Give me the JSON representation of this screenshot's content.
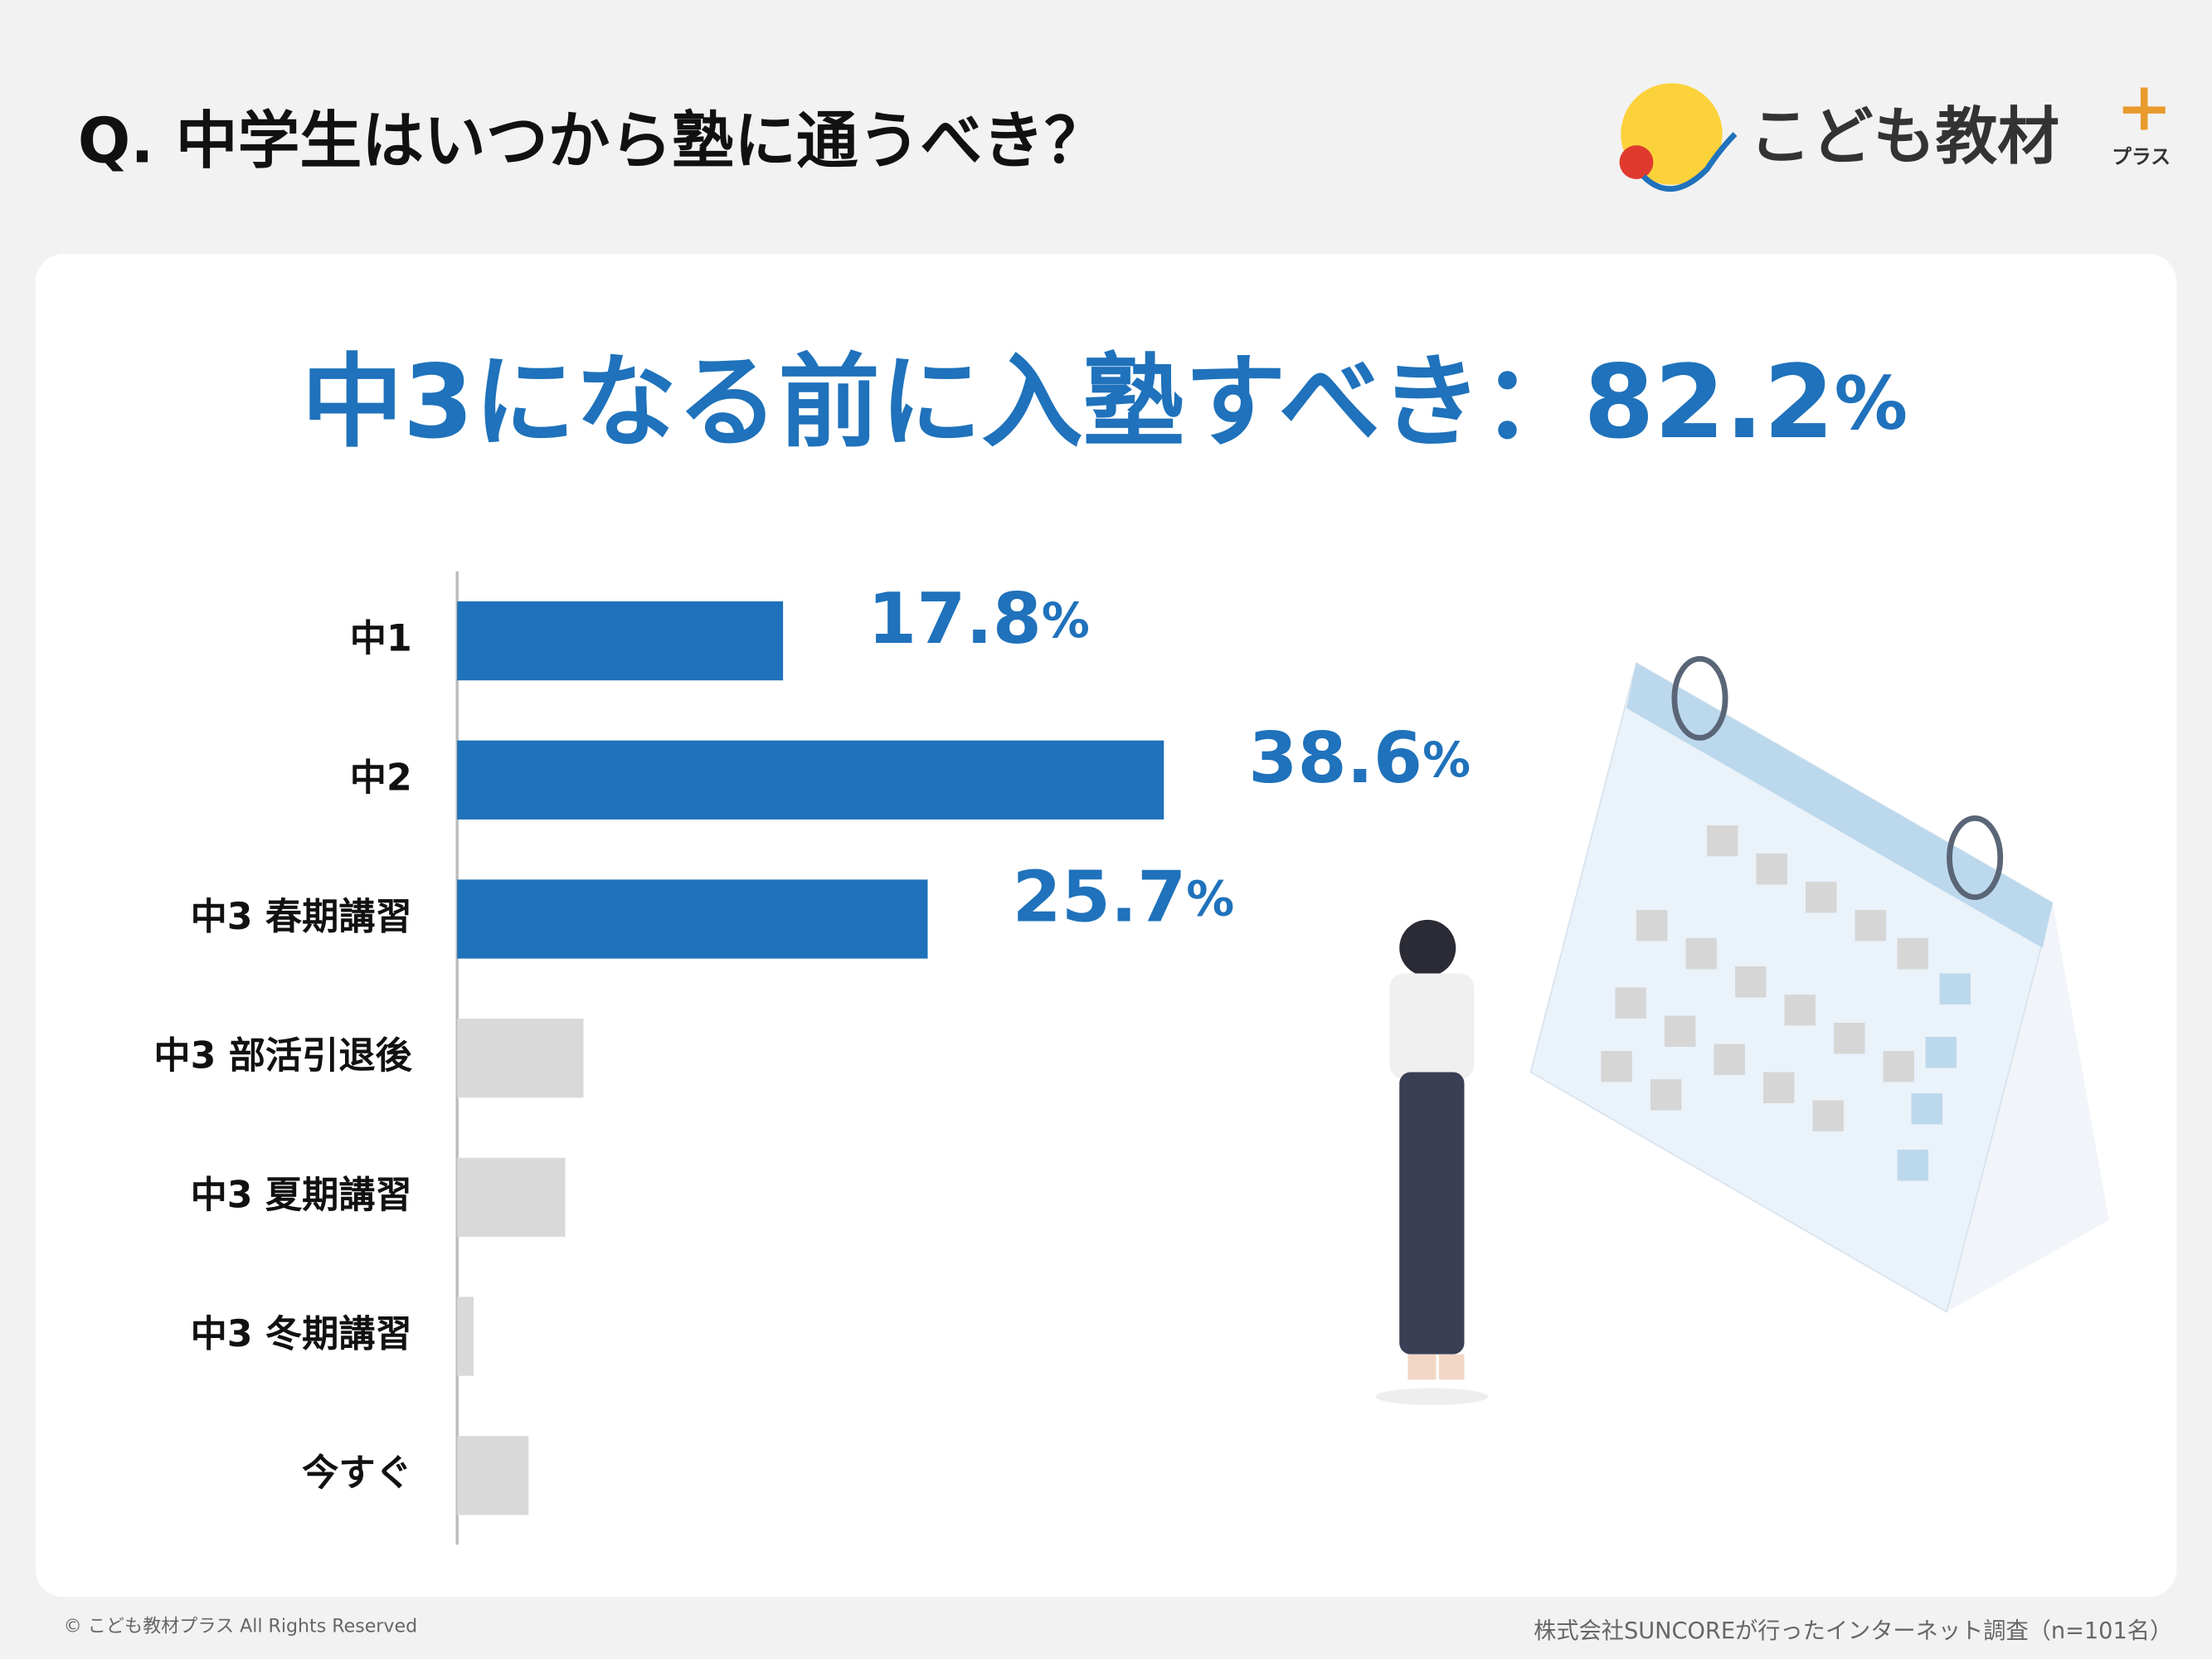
{
  "header": {
    "title": "Q. 中学生はいつから塾に通うべき？",
    "logo": "こども教材",
    "logo_sub": "プラス"
  },
  "chart_data": {
    "type": "hbar",
    "headline": "中3になる前に入塾すべき：82.2%",
    "categories": [
      "中1",
      "中2",
      "中3 春期講習",
      "中3 部活引退後",
      "中3 夏期講習",
      "中3 冬期講習",
      "今すぐ"
    ],
    "values": [
      17.8,
      38.6,
      25.7,
      6.9,
      5.9,
      0.9,
      3.9
    ],
    "value_labels": [
      "17.8%",
      "38.6%",
      "25.7%",
      null,
      null,
      null,
      null
    ],
    "colors": [
      "#1f72bb",
      "#1f72bb",
      "#1f72bb",
      "#d9d9d9",
      "#d9d9d9",
      "#d9d9d9",
      "#d9d9d9"
    ],
    "label_color": "#1f72bb",
    "xlim": [
      0,
      50
    ]
  },
  "footer": {
    "copyright": "© こども教材プラス All Rights Reserved",
    "source": "株式会社SUNCOREが行ったインターネット調査（n=101名）"
  }
}
